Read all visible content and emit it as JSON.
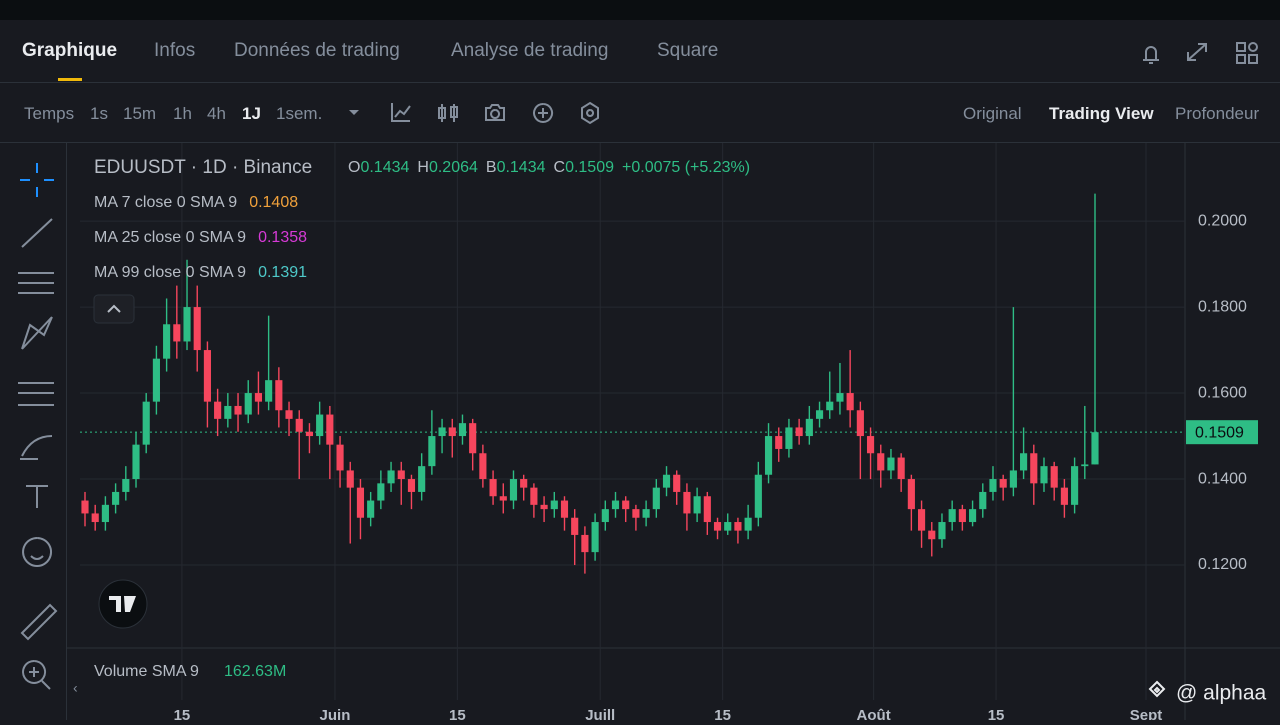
{
  "top_tabs": [
    "Graphique",
    "Infos",
    "Données de trading",
    "Analyse de trading",
    "Square"
  ],
  "toolbar": {
    "intervals": [
      "Temps",
      "1s",
      "15m",
      "1h",
      "4h",
      "1J",
      "1sem."
    ],
    "views": [
      "Original",
      "Trading View",
      "Profondeur"
    ]
  },
  "chart_data": {
    "type": "candlestick",
    "symbol": "EDUUSDT · 1D · Binance",
    "ohlc": [
      {
        "key": "O",
        "value": 0.1434
      },
      {
        "key": "H",
        "value": 0.2064
      },
      {
        "key": "B",
        "value": 0.1434
      },
      {
        "key": "C",
        "value": 0.1509
      }
    ],
    "change": "+0.0075 (+5.23%)",
    "indicators": [
      {
        "label": "MA 7 close 0 SMA 9",
        "value": 0.1408,
        "color": "#f0a13b"
      },
      {
        "label": "MA 25 close 0 SMA 9",
        "value": 0.1358,
        "color": "#d63ad6"
      },
      {
        "label": "MA 99 close 0 SMA 9",
        "value": 0.1391,
        "color": "#4ec9c9"
      }
    ],
    "volume": {
      "label": "Volume SMA 9",
      "value": "162.63M"
    },
    "last_price": 0.1509,
    "up_color": "#2ebd85",
    "down_color": "#f6465d",
    "ylim": [
      0.1007,
      0.2177
    ],
    "yticks": [
      {
        "value": 0.2,
        "label": "0.2000"
      },
      {
        "value": 0.18,
        "label": "0.1800"
      },
      {
        "value": 0.16,
        "label": "0.1600"
      },
      {
        "value": 0.14,
        "label": "0.1400"
      },
      {
        "value": 0.12,
        "label": "0.1200"
      }
    ],
    "xlim": [
      0,
      99
    ],
    "xticks": [
      {
        "value": 9.5,
        "label": "15"
      },
      {
        "value": 24.5,
        "label": "Juin"
      },
      {
        "value": 36.5,
        "label": "15"
      },
      {
        "value": 50.5,
        "label": "Juill"
      },
      {
        "value": 62.5,
        "label": "15"
      },
      {
        "value": 77.3,
        "label": "Août"
      },
      {
        "value": 89.3,
        "label": "15"
      },
      {
        "value": 104,
        "label": "Sept"
      }
    ],
    "grid": true,
    "candles": [
      [
        0.135,
        0.137,
        0.129,
        0.132
      ],
      [
        0.132,
        0.134,
        0.128,
        0.13
      ],
      [
        0.13,
        0.136,
        0.128,
        0.134
      ],
      [
        0.134,
        0.139,
        0.132,
        0.137
      ],
      [
        0.137,
        0.143,
        0.135,
        0.14
      ],
      [
        0.14,
        0.151,
        0.138,
        0.148
      ],
      [
        0.148,
        0.16,
        0.146,
        0.158
      ],
      [
        0.158,
        0.171,
        0.155,
        0.168
      ],
      [
        0.168,
        0.182,
        0.165,
        0.176
      ],
      [
        0.176,
        0.185,
        0.168,
        0.172
      ],
      [
        0.172,
        0.191,
        0.17,
        0.18
      ],
      [
        0.18,
        0.185,
        0.165,
        0.17
      ],
      [
        0.17,
        0.172,
        0.152,
        0.158
      ],
      [
        0.158,
        0.161,
        0.15,
        0.154
      ],
      [
        0.154,
        0.16,
        0.152,
        0.157
      ],
      [
        0.157,
        0.16,
        0.151,
        0.155
      ],
      [
        0.155,
        0.163,
        0.153,
        0.16
      ],
      [
        0.16,
        0.165,
        0.155,
        0.158
      ],
      [
        0.158,
        0.178,
        0.156,
        0.163
      ],
      [
        0.163,
        0.166,
        0.152,
        0.156
      ],
      [
        0.156,
        0.158,
        0.15,
        0.154
      ],
      [
        0.154,
        0.156,
        0.14,
        0.151
      ],
      [
        0.151,
        0.153,
        0.146,
        0.15
      ],
      [
        0.15,
        0.158,
        0.148,
        0.155
      ],
      [
        0.155,
        0.157,
        0.14,
        0.148
      ],
      [
        0.148,
        0.15,
        0.138,
        0.142
      ],
      [
        0.142,
        0.144,
        0.125,
        0.138
      ],
      [
        0.138,
        0.14,
        0.126,
        0.131
      ],
      [
        0.131,
        0.137,
        0.129,
        0.135
      ],
      [
        0.135,
        0.142,
        0.133,
        0.139
      ],
      [
        0.139,
        0.144,
        0.137,
        0.142
      ],
      [
        0.142,
        0.144,
        0.134,
        0.14
      ],
      [
        0.14,
        0.141,
        0.133,
        0.137
      ],
      [
        0.137,
        0.146,
        0.135,
        0.143
      ],
      [
        0.143,
        0.156,
        0.141,
        0.15
      ],
      [
        0.15,
        0.154,
        0.146,
        0.152
      ],
      [
        0.152,
        0.154,
        0.145,
        0.15
      ],
      [
        0.15,
        0.155,
        0.148,
        0.153
      ],
      [
        0.153,
        0.154,
        0.142,
        0.146
      ],
      [
        0.146,
        0.148,
        0.138,
        0.14
      ],
      [
        0.14,
        0.142,
        0.134,
        0.136
      ],
      [
        0.136,
        0.139,
        0.132,
        0.135
      ],
      [
        0.135,
        0.142,
        0.133,
        0.14
      ],
      [
        0.14,
        0.141,
        0.135,
        0.138
      ],
      [
        0.138,
        0.139,
        0.131,
        0.134
      ],
      [
        0.134,
        0.136,
        0.13,
        0.133
      ],
      [
        0.133,
        0.137,
        0.131,
        0.135
      ],
      [
        0.135,
        0.136,
        0.128,
        0.131
      ],
      [
        0.131,
        0.133,
        0.12,
        0.127
      ],
      [
        0.127,
        0.129,
        0.118,
        0.123
      ],
      [
        0.123,
        0.132,
        0.121,
        0.13
      ],
      [
        0.13,
        0.135,
        0.128,
        0.133
      ],
      [
        0.133,
        0.137,
        0.131,
        0.135
      ],
      [
        0.135,
        0.136,
        0.13,
        0.133
      ],
      [
        0.133,
        0.134,
        0.128,
        0.131
      ],
      [
        0.131,
        0.135,
        0.129,
        0.133
      ],
      [
        0.133,
        0.14,
        0.131,
        0.138
      ],
      [
        0.138,
        0.143,
        0.136,
        0.141
      ],
      [
        0.141,
        0.142,
        0.134,
        0.137
      ],
      [
        0.137,
        0.139,
        0.128,
        0.132
      ],
      [
        0.132,
        0.138,
        0.13,
        0.136
      ],
      [
        0.136,
        0.137,
        0.127,
        0.13
      ],
      [
        0.13,
        0.131,
        0.126,
        0.128
      ],
      [
        0.128,
        0.132,
        0.127,
        0.13
      ],
      [
        0.13,
        0.131,
        0.125,
        0.128
      ],
      [
        0.128,
        0.134,
        0.126,
        0.131
      ],
      [
        0.131,
        0.144,
        0.129,
        0.141
      ],
      [
        0.141,
        0.153,
        0.139,
        0.15
      ],
      [
        0.15,
        0.152,
        0.144,
        0.147
      ],
      [
        0.147,
        0.154,
        0.145,
        0.152
      ],
      [
        0.152,
        0.154,
        0.148,
        0.15
      ],
      [
        0.15,
        0.157,
        0.148,
        0.154
      ],
      [
        0.154,
        0.158,
        0.152,
        0.156
      ],
      [
        0.156,
        0.165,
        0.154,
        0.158
      ],
      [
        0.158,
        0.167,
        0.155,
        0.16
      ],
      [
        0.16,
        0.17,
        0.152,
        0.156
      ],
      [
        0.156,
        0.158,
        0.14,
        0.15
      ],
      [
        0.15,
        0.152,
        0.14,
        0.146
      ],
      [
        0.146,
        0.148,
        0.138,
        0.142
      ],
      [
        0.142,
        0.147,
        0.14,
        0.145
      ],
      [
        0.145,
        0.146,
        0.137,
        0.14
      ],
      [
        0.14,
        0.141,
        0.128,
        0.133
      ],
      [
        0.133,
        0.135,
        0.124,
        0.128
      ],
      [
        0.128,
        0.13,
        0.122,
        0.126
      ],
      [
        0.126,
        0.132,
        0.124,
        0.13
      ],
      [
        0.13,
        0.135,
        0.128,
        0.133
      ],
      [
        0.133,
        0.134,
        0.128,
        0.13
      ],
      [
        0.13,
        0.135,
        0.129,
        0.133
      ],
      [
        0.133,
        0.139,
        0.131,
        0.137
      ],
      [
        0.137,
        0.143,
        0.135,
        0.14
      ],
      [
        0.14,
        0.141,
        0.135,
        0.138
      ],
      [
        0.138,
        0.18,
        0.136,
        0.142
      ],
      [
        0.142,
        0.152,
        0.14,
        0.146
      ],
      [
        0.146,
        0.148,
        0.134,
        0.139
      ],
      [
        0.139,
        0.145,
        0.137,
        0.143
      ],
      [
        0.143,
        0.144,
        0.135,
        0.138
      ],
      [
        0.138,
        0.14,
        0.131,
        0.134
      ],
      [
        0.134,
        0.145,
        0.132,
        0.143
      ],
      [
        0.143,
        0.157,
        0.14,
        0.1434
      ],
      [
        0.1434,
        0.2064,
        0.1434,
        0.1509
      ]
    ]
  },
  "watermark": "@ alphaa"
}
